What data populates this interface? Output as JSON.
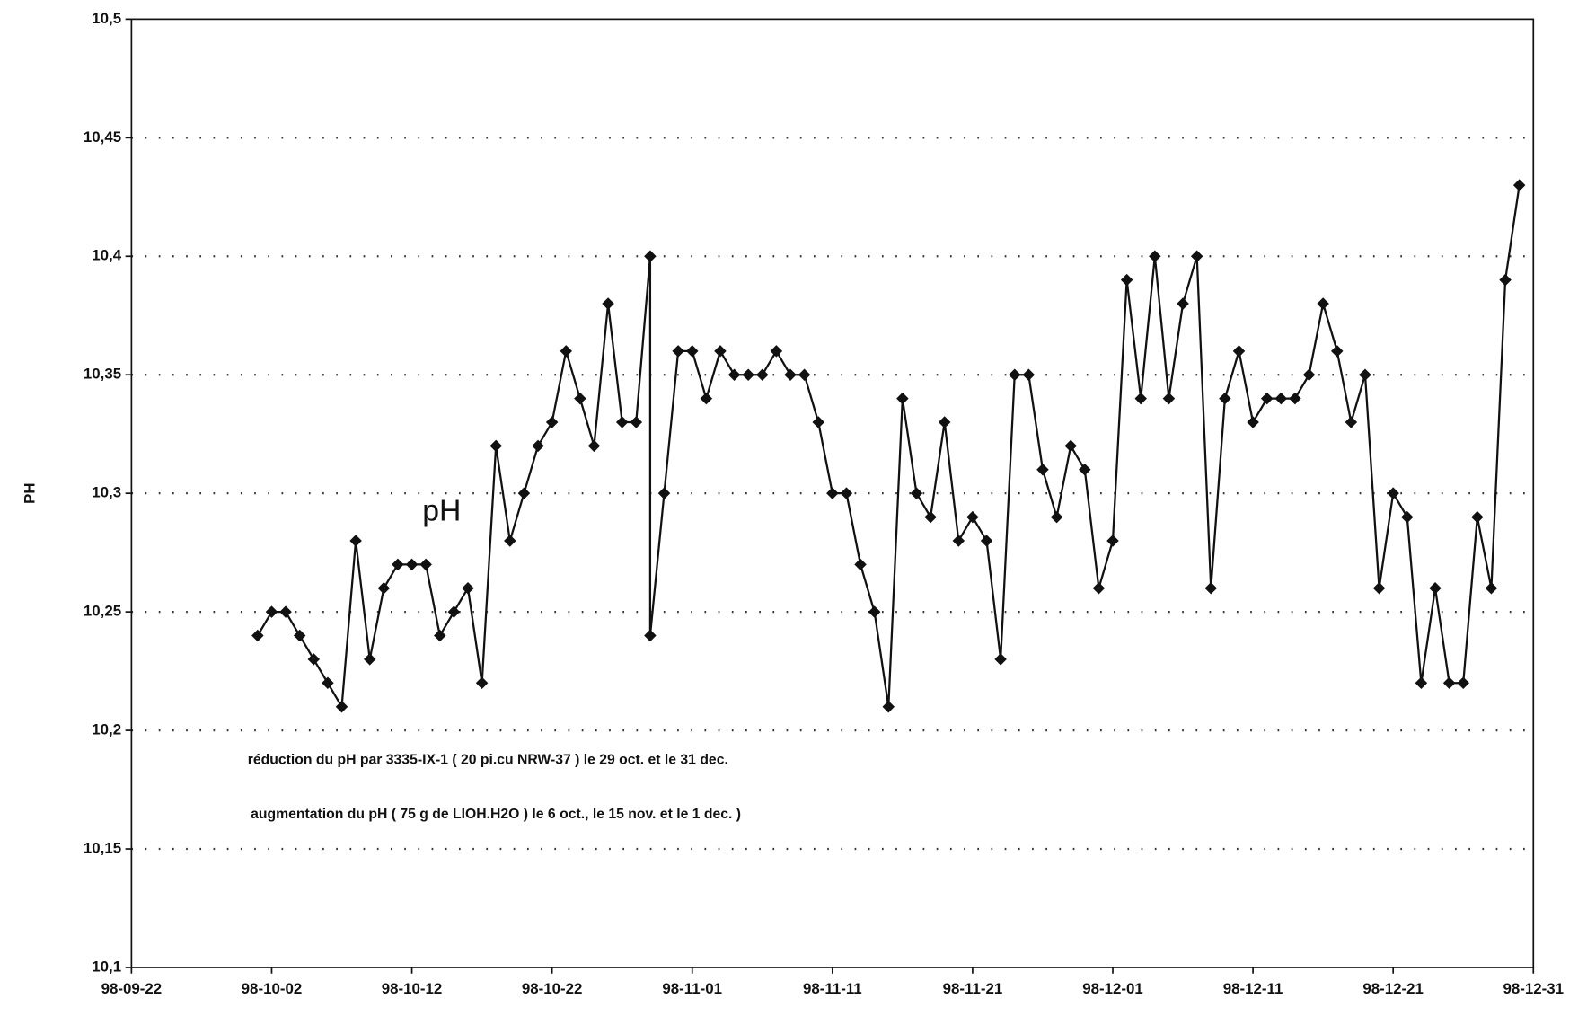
{
  "chart_data": {
    "type": "line",
    "y_label": "PH",
    "annotations": [
      "pH",
      "réduction du pH par 3335-IX-1 ( 20 pi.cu NRW-37 ) le 29 oct. et le 31 dec.",
      "augmentation du pH ( 75 g de LIOH.H2O ) le 6 oct., le 15 nov. et le 1 dec. )"
    ],
    "x": [
      "98-10-01",
      "98-10-02",
      "98-10-03",
      "98-10-04",
      "98-10-05",
      "98-10-06",
      "98-10-07",
      "98-10-08",
      "98-10-09",
      "98-10-10",
      "98-10-11",
      "98-10-12",
      "98-10-13",
      "98-10-14",
      "98-10-15",
      "98-10-16",
      "98-10-17",
      "98-10-18",
      "98-10-19",
      "98-10-20",
      "98-10-21",
      "98-10-22",
      "98-10-23",
      "98-10-24",
      "98-10-25",
      "98-10-26",
      "98-10-27",
      "98-10-28",
      "98-10-29",
      "98-10-29",
      "98-10-30",
      "98-10-31",
      "98-11-01",
      "98-11-02",
      "98-11-03",
      "98-11-04",
      "98-11-05",
      "98-11-06",
      "98-11-07",
      "98-11-08",
      "98-11-09",
      "98-11-10",
      "98-11-11",
      "98-11-12",
      "98-11-13",
      "98-11-14",
      "98-11-15",
      "98-11-16",
      "98-11-17",
      "98-11-18",
      "98-11-19",
      "98-11-20",
      "98-11-21",
      "98-11-22",
      "98-11-23",
      "98-11-24",
      "98-11-25",
      "98-11-26",
      "98-11-27",
      "98-11-28",
      "98-11-29",
      "98-11-30",
      "98-12-01",
      "98-12-02",
      "98-12-03",
      "98-12-04",
      "98-12-05",
      "98-12-06",
      "98-12-07",
      "98-12-08",
      "98-12-09",
      "98-12-10",
      "98-12-11",
      "98-12-12",
      "98-12-13",
      "98-12-14",
      "98-12-15",
      "98-12-16",
      "98-12-17",
      "98-12-18",
      "98-12-19",
      "98-12-20",
      "98-12-21",
      "98-12-22",
      "98-12-23",
      "98-12-24",
      "98-12-25",
      "98-12-26",
      "98-12-27",
      "98-12-28",
      "98-12-29",
      "98-12-30"
    ],
    "series": [
      {
        "name": "pH",
        "color": "#111111",
        "values": [
          10.24,
          10.25,
          10.25,
          10.24,
          10.23,
          10.22,
          10.21,
          10.28,
          10.23,
          10.26,
          10.27,
          10.27,
          10.27,
          10.24,
          10.25,
          10.26,
          10.22,
          10.32,
          10.28,
          10.3,
          10.32,
          10.33,
          10.36,
          10.34,
          10.32,
          10.38,
          10.33,
          10.33,
          10.4,
          10.24,
          10.3,
          10.36,
          10.36,
          10.34,
          10.36,
          10.35,
          10.35,
          10.35,
          10.36,
          10.35,
          10.35,
          10.33,
          10.3,
          10.3,
          10.27,
          10.25,
          10.21,
          10.34,
          10.3,
          10.29,
          10.33,
          10.28,
          10.29,
          10.28,
          10.23,
          10.35,
          10.35,
          10.31,
          10.29,
          10.32,
          10.31,
          10.26,
          10.28,
          10.39,
          10.34,
          10.4,
          10.34,
          10.38,
          10.4,
          10.26,
          10.34,
          10.36,
          10.33,
          10.34,
          10.34,
          10.34,
          10.35,
          10.38,
          10.36,
          10.33,
          10.35,
          10.26,
          10.3,
          10.29,
          10.22,
          10.26,
          10.22,
          10.22,
          10.29,
          10.26,
          10.39,
          10.43
        ]
      }
    ],
    "xlim": [
      "98-09-22",
      "98-12-31"
    ],
    "xticks": [
      "98-09-22",
      "98-10-02",
      "98-10-12",
      "98-10-22",
      "98-11-01",
      "98-11-11",
      "98-11-21",
      "98-12-01",
      "98-12-11",
      "98-12-21",
      "98-12-31"
    ],
    "ylim": [
      10.1,
      10.5
    ],
    "yticks": [
      {
        "value": 10.1,
        "label": "10,1"
      },
      {
        "value": 10.15,
        "label": "10,15"
      },
      {
        "value": 10.2,
        "label": "10,2"
      },
      {
        "value": 10.25,
        "label": "10,25"
      },
      {
        "value": 10.3,
        "label": "10,3"
      },
      {
        "value": 10.35,
        "label": "10,35"
      },
      {
        "value": 10.4,
        "label": "10,4"
      },
      {
        "value": 10.45,
        "label": "10,45"
      },
      {
        "value": 10.5,
        "label": "10,5"
      }
    ],
    "grid": true
  }
}
